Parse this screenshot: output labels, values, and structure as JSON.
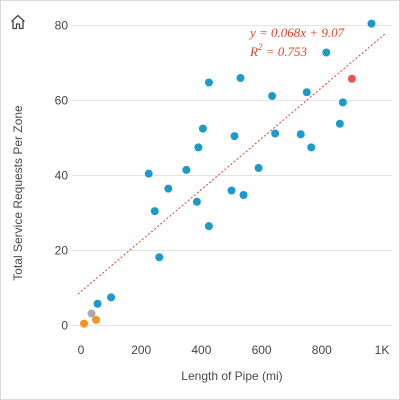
{
  "toolbar": {
    "home_icon": "home-icon"
  },
  "colors": {
    "point": "#1a9bcc",
    "highlight": "#e8554e",
    "gray": "#aaaaaa",
    "orange": "#f7931e",
    "trendline": "#d9452b",
    "grid": "#e4e4e4"
  },
  "chart_data": {
    "type": "scatter",
    "xlabel": "Length of Pipe (mi)",
    "ylabel": "Total Service Requests Per Zone",
    "xlim": [
      -10,
      1010
    ],
    "ylim": [
      -2,
      82
    ],
    "x_ticks": [
      0,
      200,
      400,
      600,
      800,
      1000
    ],
    "x_tick_labels": [
      "0",
      "200",
      "400",
      "600",
      "800",
      "1K"
    ],
    "y_ticks": [
      0,
      20,
      40,
      60,
      80
    ],
    "y_tick_labels": [
      "0",
      "20",
      "40",
      "60",
      "80"
    ],
    "grid": "horizontal",
    "trendline": {
      "slope": 0.068,
      "intercept": 9.07,
      "equation": "y = 0.068x + 9.07",
      "r2_label": "R",
      "r2_sup": "2",
      "r2_value": " = 0.753"
    },
    "points": [
      {
        "x": 10,
        "y": 0.5,
        "color": "orange"
      },
      {
        "x": 50,
        "y": 1.5,
        "color": "orange"
      },
      {
        "x": 35,
        "y": 3.2,
        "color": "gray"
      },
      {
        "x": 55,
        "y": 5.8,
        "color": "point"
      },
      {
        "x": 100,
        "y": 7.5,
        "color": "point"
      },
      {
        "x": 225,
        "y": 40.5,
        "color": "point"
      },
      {
        "x": 245,
        "y": 30.5,
        "color": "point"
      },
      {
        "x": 260,
        "y": 18.2,
        "color": "point"
      },
      {
        "x": 290,
        "y": 36.5,
        "color": "point"
      },
      {
        "x": 350,
        "y": 41.5,
        "color": "point"
      },
      {
        "x": 385,
        "y": 33.0,
        "color": "point"
      },
      {
        "x": 390,
        "y": 47.5,
        "color": "point"
      },
      {
        "x": 405,
        "y": 52.5,
        "color": "point"
      },
      {
        "x": 425,
        "y": 26.5,
        "color": "point"
      },
      {
        "x": 425,
        "y": 64.8,
        "color": "point"
      },
      {
        "x": 500,
        "y": 36.0,
        "color": "point"
      },
      {
        "x": 510,
        "y": 50.5,
        "color": "point"
      },
      {
        "x": 530,
        "y": 66.0,
        "color": "point"
      },
      {
        "x": 540,
        "y": 34.8,
        "color": "point"
      },
      {
        "x": 590,
        "y": 42.0,
        "color": "point"
      },
      {
        "x": 635,
        "y": 61.2,
        "color": "point"
      },
      {
        "x": 645,
        "y": 51.2,
        "color": "point"
      },
      {
        "x": 730,
        "y": 51.0,
        "color": "point"
      },
      {
        "x": 750,
        "y": 62.2,
        "color": "point"
      },
      {
        "x": 765,
        "y": 47.5,
        "color": "point"
      },
      {
        "x": 815,
        "y": 72.8,
        "color": "point"
      },
      {
        "x": 860,
        "y": 53.8,
        "color": "point"
      },
      {
        "x": 870,
        "y": 59.5,
        "color": "point"
      },
      {
        "x": 900,
        "y": 65.8,
        "color": "highlight"
      },
      {
        "x": 965,
        "y": 80.5,
        "color": "point"
      }
    ]
  }
}
